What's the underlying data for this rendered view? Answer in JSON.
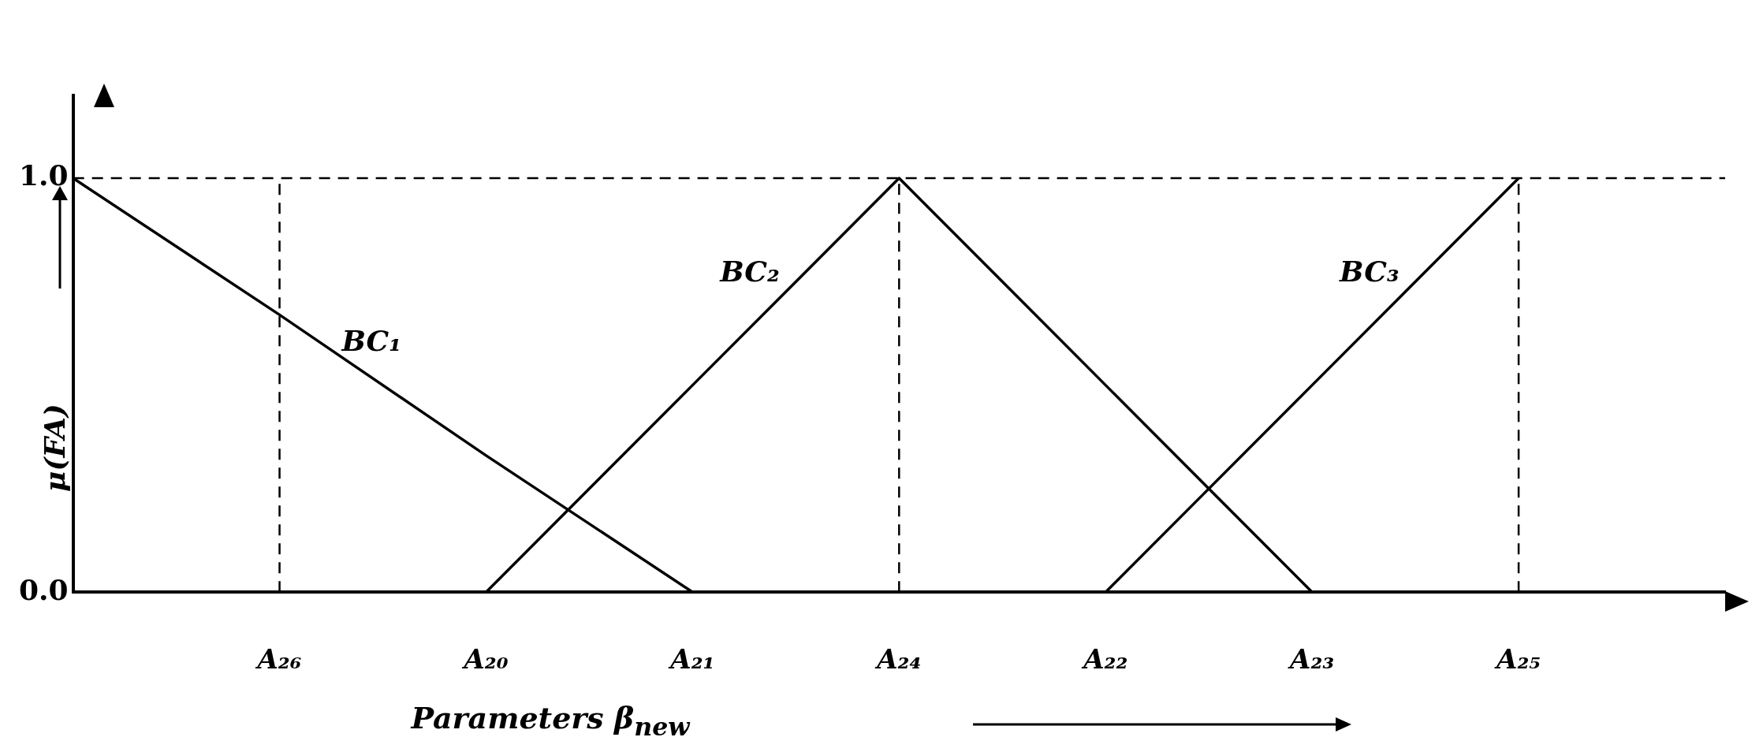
{
  "chart_data": {
    "type": "line",
    "xlabel": "Parameters β$_{new}$",
    "ylabel": "μ(FA)",
    "categories": [
      null,
      "A₂₆",
      "A₂₀",
      "A₂₁",
      "A₂₄",
      "A₂₂",
      "A₂₃",
      "A₂₅",
      null
    ],
    "ylim": [
      0,
      1.2
    ],
    "yticks": [
      {
        "value": 0,
        "label": "0.0"
      },
      {
        "value": 1,
        "label": "1.0"
      }
    ],
    "grid": false,
    "legend": false,
    "marker": "none",
    "line_style": "solid",
    "series": [
      {
        "name": "BC₁",
        "color": "#000000",
        "values": [
          1,
          0.67,
          0.33,
          0,
          null,
          null,
          null,
          null,
          null
        ]
      },
      {
        "name": "BC₂",
        "color": "#000000",
        "values": [
          null,
          null,
          0,
          0.5,
          1,
          0.5,
          0,
          null,
          null
        ]
      },
      {
        "name": "BC₃",
        "color": "#000000",
        "values": [
          null,
          null,
          null,
          null,
          null,
          0,
          0.5,
          1,
          null
        ]
      }
    ],
    "ref_lines": [
      {
        "axis": "y",
        "value": 1,
        "color": "#000000",
        "line_style": "dashed"
      },
      {
        "axis": "x",
        "value": "A₂₆",
        "color": "#000000",
        "line_style": "dashed"
      },
      {
        "axis": "x",
        "value": "A₂₄",
        "color": "#000000",
        "line_style": "dashed"
      },
      {
        "axis": "x",
        "value": "A₂₅",
        "color": "#000000",
        "line_style": "dashed"
      }
    ]
  }
}
